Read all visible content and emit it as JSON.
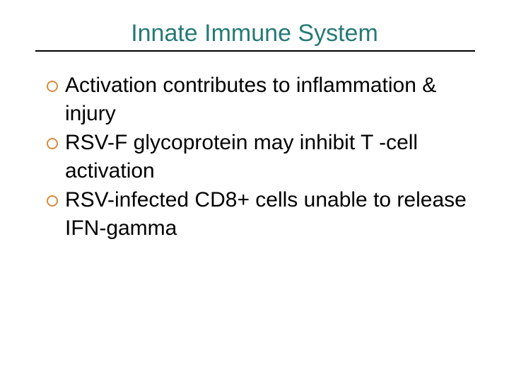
{
  "slide": {
    "title": "Innate Immune System",
    "title_color": "#267a75",
    "title_fontsize": 34,
    "divider_color": "#000000",
    "bullet_marker_color": "#d68a3e",
    "body_fontsize": 30,
    "body_color": "#000000",
    "background_color": "#ffffff",
    "bullets": [
      {
        "text": "Activation contributes to inflammation & injury"
      },
      {
        "text": "RSV-F glycoprotein may inhibit T -cell activation"
      },
      {
        "text": "RSV-infected CD8+ cells unable to release IFN-gamma"
      }
    ]
  }
}
